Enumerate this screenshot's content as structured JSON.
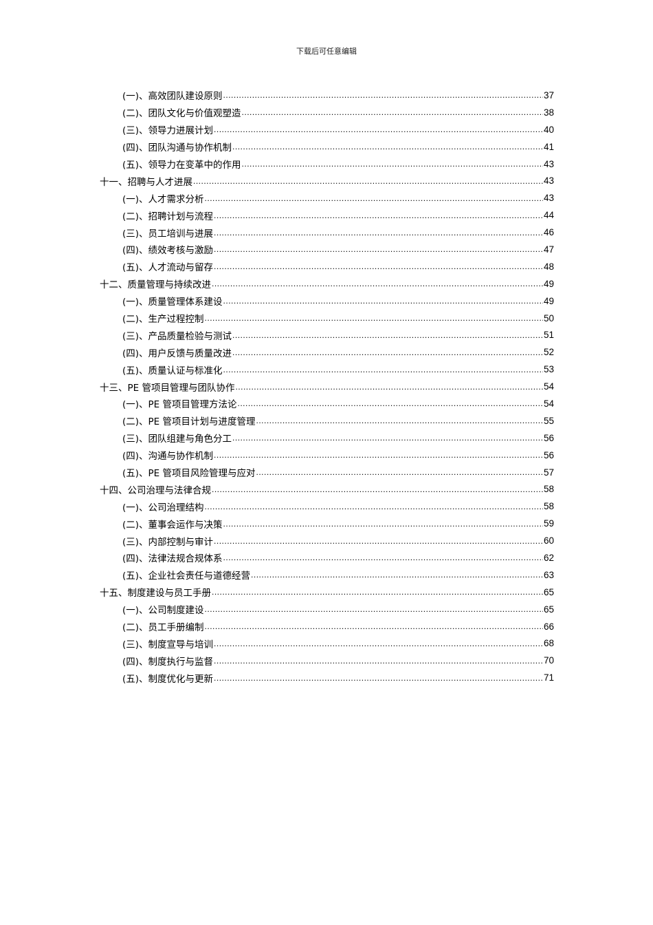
{
  "header": {
    "text": "下载后可任意编辑"
  },
  "toc": [
    {
      "level": 2,
      "title": "(一)、高效团队建设原则",
      "page": "37"
    },
    {
      "level": 2,
      "title": "(二)、团队文化与价值观塑造",
      "page": "38"
    },
    {
      "level": 2,
      "title": "(三)、领导力进展计划",
      "page": "40"
    },
    {
      "level": 2,
      "title": "(四)、团队沟通与协作机制",
      "page": "41"
    },
    {
      "level": 2,
      "title": "(五)、领导力在变革中的作用",
      "page": "43"
    },
    {
      "level": 1,
      "title": "十一、招聘与人才进展",
      "page": "43"
    },
    {
      "level": 2,
      "title": "(一)、人才需求分析",
      "page": "43"
    },
    {
      "level": 2,
      "title": "(二)、招聘计划与流程",
      "page": "44"
    },
    {
      "level": 2,
      "title": "(三)、员工培训与进展",
      "page": "46"
    },
    {
      "level": 2,
      "title": "(四)、绩效考核与激励",
      "page": "47"
    },
    {
      "level": 2,
      "title": "(五)、人才流动与留存",
      "page": "48"
    },
    {
      "level": 1,
      "title": "十二、质量管理与持续改进",
      "page": "49"
    },
    {
      "level": 2,
      "title": "(一)、质量管理体系建设",
      "page": "49"
    },
    {
      "level": 2,
      "title": "(二)、生产过程控制",
      "page": "50"
    },
    {
      "level": 2,
      "title": "(三)、产品质量检验与测试",
      "page": "51"
    },
    {
      "level": 2,
      "title": "(四)、用户反馈与质量改进",
      "page": "52"
    },
    {
      "level": 2,
      "title": "(五)、质量认证与标准化",
      "page": "53"
    },
    {
      "level": 1,
      "title": "十三、PE 管项目管理与团队协作",
      "page": "54"
    },
    {
      "level": 2,
      "title": "(一)、PE 管项目管理方法论",
      "page": "54"
    },
    {
      "level": 2,
      "title": "(二)、PE 管项目计划与进度管理",
      "page": "55"
    },
    {
      "level": 2,
      "title": "(三)、团队组建与角色分工",
      "page": "56"
    },
    {
      "level": 2,
      "title": "(四)、沟通与协作机制",
      "page": "56"
    },
    {
      "level": 2,
      "title": "(五)、PE 管项目风险管理与应对",
      "page": "57"
    },
    {
      "level": 1,
      "title": "十四、公司治理与法律合规",
      "page": "58"
    },
    {
      "level": 2,
      "title": "(一)、公司治理结构",
      "page": "58"
    },
    {
      "level": 2,
      "title": "(二)、董事会运作与决策",
      "page": "59"
    },
    {
      "level": 2,
      "title": "(三)、内部控制与审计",
      "page": "60"
    },
    {
      "level": 2,
      "title": "(四)、法律法规合规体系",
      "page": "62"
    },
    {
      "level": 2,
      "title": "(五)、企业社会责任与道德经营",
      "page": "63"
    },
    {
      "level": 1,
      "title": "十五、制度建设与员工手册",
      "page": "65"
    },
    {
      "level": 2,
      "title": "(一)、公司制度建设",
      "page": "65"
    },
    {
      "level": 2,
      "title": "(二)、员工手册编制",
      "page": "66"
    },
    {
      "level": 2,
      "title": "(三)、制度宣导与培训",
      "page": "68"
    },
    {
      "level": 2,
      "title": "(四)、制度执行与监督",
      "page": "70"
    },
    {
      "level": 2,
      "title": "(五)、制度优化与更新",
      "page": "71"
    }
  ]
}
